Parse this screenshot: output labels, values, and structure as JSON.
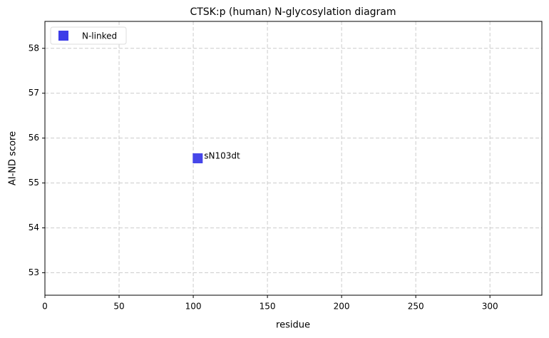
{
  "chart_data": {
    "type": "scatter",
    "title": "CTSK:p (human) N-glycosylation diagram",
    "x_label": "residue",
    "y_label": "AI-ND score",
    "series": [
      {
        "name": "N-linked",
        "color": "#3c3ce8",
        "x": [
          103
        ],
        "values": [
          55.55
        ],
        "labels": [
          "sN103dt"
        ]
      }
    ],
    "xlim": [
      0,
      335
    ],
    "ylim": [
      52.5,
      58.6
    ],
    "xticks": [
      0,
      50,
      100,
      150,
      200,
      250,
      300
    ],
    "yticks": [
      53,
      54,
      55,
      56,
      57,
      58
    ],
    "grid": true,
    "legend": "upper left"
  }
}
